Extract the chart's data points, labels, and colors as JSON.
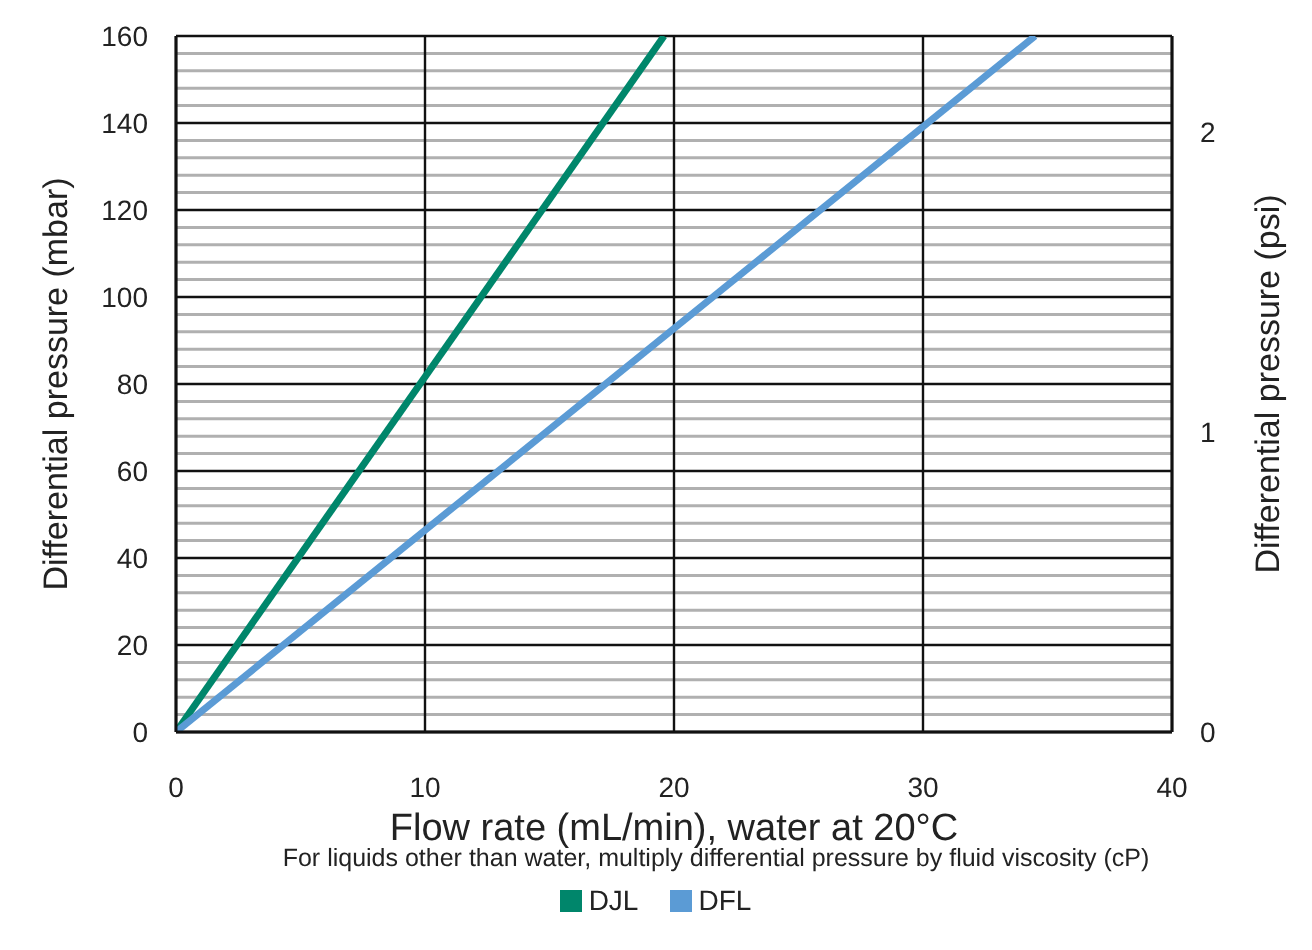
{
  "chart_data": {
    "type": "line",
    "xlabel": "Flow rate (mL/min), water at 20°C",
    "ylabel": "Differential pressure (mbar)",
    "y2label": "Differential pressure (psi)",
    "annotations": [
      "For liquids other than water, multiply differential pressure by fluid viscosity (cP)"
    ],
    "series": [
      {
        "name": "DJL",
        "color": "#00866b",
        "x": [
          0,
          19.6
        ],
        "values": [
          0,
          160
        ]
      },
      {
        "name": "DFL",
        "color": "#5b9bd5",
        "x": [
          0,
          34.5
        ],
        "values": [
          0,
          160
        ]
      }
    ],
    "xlim": [
      0,
      40
    ],
    "xticks": [
      0,
      10,
      20,
      30,
      40
    ],
    "ylim": [
      0,
      160
    ],
    "yticks": [
      0,
      {
        "value": 4,
        "label": null
      },
      {
        "value": 8,
        "label": null
      },
      {
        "value": 12,
        "label": null
      },
      {
        "value": 16,
        "label": null
      },
      20,
      {
        "value": 24,
        "label": null
      },
      {
        "value": 28,
        "label": null
      },
      {
        "value": 32,
        "label": null
      },
      {
        "value": 36,
        "label": null
      },
      40,
      {
        "value": 44,
        "label": null
      },
      {
        "value": 48,
        "label": null
      },
      {
        "value": 52,
        "label": null
      },
      {
        "value": 56,
        "label": null
      },
      60,
      {
        "value": 64,
        "label": null
      },
      {
        "value": 68,
        "label": null
      },
      {
        "value": 72,
        "label": null
      },
      {
        "value": 76,
        "label": null
      },
      80,
      {
        "value": 84,
        "label": null
      },
      {
        "value": 88,
        "label": null
      },
      {
        "value": 92,
        "label": null
      },
      {
        "value": 96,
        "label": null
      },
      100,
      {
        "value": 104,
        "label": null
      },
      {
        "value": 108,
        "label": null
      },
      {
        "value": 112,
        "label": null
      },
      {
        "value": 116,
        "label": null
      },
      120,
      {
        "value": 124,
        "label": null
      },
      {
        "value": 128,
        "label": null
      },
      {
        "value": 132,
        "label": null
      },
      {
        "value": 136,
        "label": null
      },
      140,
      {
        "value": 144,
        "label": null
      },
      {
        "value": 148,
        "label": null
      },
      {
        "value": 152,
        "label": null
      },
      {
        "value": 156,
        "label": null
      },
      160
    ],
    "y2lim": [
      0,
      2.32
    ],
    "y2ticks": [
      0,
      1,
      2
    ],
    "grid": true,
    "legend": "bottom",
    "marker": "none",
    "line_style": "solid"
  }
}
